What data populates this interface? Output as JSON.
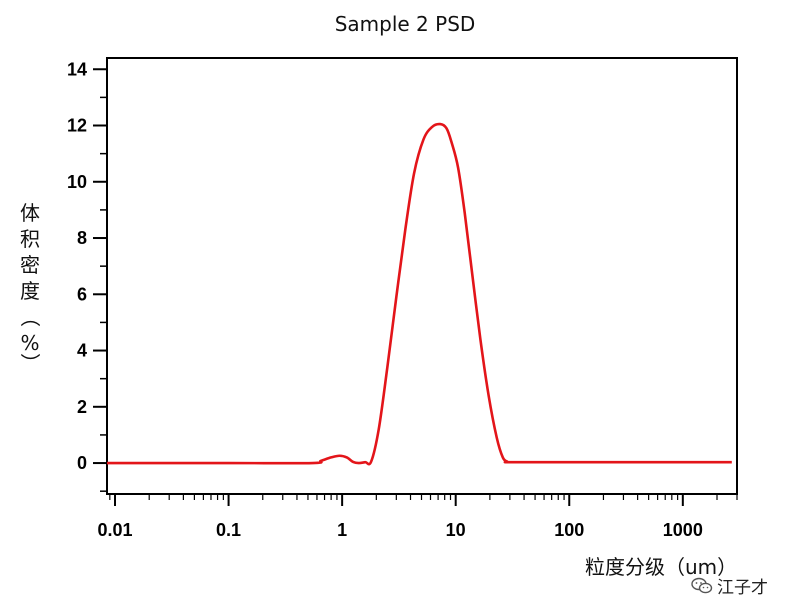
{
  "chart_data": {
    "type": "line",
    "title": "Sample 2 PSD",
    "xlabel": "粒度分级（um）",
    "ylabel": "体积密度（%）",
    "xscale": "log",
    "xlim": [
      0.0085,
      3000
    ],
    "ylim": [
      -1.1,
      14.4
    ],
    "x_ticks": [
      0.01,
      0.1,
      1,
      10,
      100,
      1000
    ],
    "x_tick_labels": [
      "0.01",
      "0.1",
      "1",
      "10",
      "100",
      "1000"
    ],
    "y_ticks": [
      0,
      2,
      4,
      6,
      8,
      10,
      12,
      14
    ],
    "y_tick_labels": [
      "0",
      "2",
      "4",
      "6",
      "8",
      "10",
      "12",
      "14"
    ],
    "grid": false,
    "legend": "none",
    "series": [
      {
        "color": "#e3151a",
        "x": [
          0.0085,
          0.1,
          0.55,
          0.65,
          0.8,
          0.95,
          1.1,
          1.25,
          1.4,
          1.6,
          1.8,
          2.1,
          2.5,
          3.0,
          3.6,
          4.3,
          5.2,
          6.2,
          7.3,
          8.3,
          9.2,
          10.5,
          12.0,
          14.0,
          16.5,
          19.5,
          23.0,
          26.0,
          28.5,
          30.0,
          100,
          2700
        ],
        "y": [
          0,
          0,
          0,
          0.08,
          0.2,
          0.26,
          0.2,
          0.04,
          0.0,
          0.03,
          0.05,
          1.2,
          3.4,
          5.9,
          8.3,
          10.3,
          11.5,
          11.95,
          12.05,
          11.9,
          11.4,
          10.5,
          8.9,
          6.7,
          4.4,
          2.4,
          0.9,
          0.2,
          0.05,
          0.03,
          0.03,
          0.03
        ]
      }
    ]
  },
  "watermark": {
    "text": "江子才",
    "icon": "wechat-icon"
  }
}
